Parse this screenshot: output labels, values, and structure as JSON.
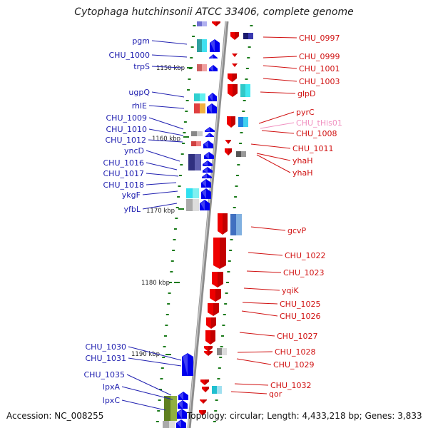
{
  "title": "Cytophaga hutchinsonii ATCC 33406, complete genome",
  "accession": "Accession: NC_008255",
  "topology_info": "Topology: circular; Length: 4,433,218 bp; Genes: 3,833",
  "colors": {
    "background": "#ffffff",
    "backbone": "#8c8c8c",
    "forward_gene": "#0000ee",
    "reverse_gene": "#ee0000",
    "forward_label": "#2020b0",
    "reverse_label": "#d01010",
    "trna_label": "#f090c0",
    "tick": "#1a7a1a"
  },
  "kbp_ticks": [
    "1150 kbp",
    "1160 kbp",
    "1170 kbp",
    "1180 kbp",
    "1190 kbp"
  ],
  "forward_strand_labels": [
    "pgm",
    "CHU_1000",
    "trpS",
    "ugpQ",
    "rhlE",
    "CHU_1009",
    "CHU_1010",
    "CHU_1012",
    "yncD",
    "CHU_1016",
    "CHU_1017",
    "CHU_1018",
    "ykgF",
    "yfbL",
    "CHU_1030",
    "CHU_1031",
    "CHU_1035",
    "lpxA",
    "lpxC"
  ],
  "reverse_strand_labels": [
    "CHU_0997",
    "CHU_0999",
    "CHU_1001",
    "CHU_1003",
    "glpD",
    "pyrC",
    "CHU_tHis01",
    "CHU_1008",
    "CHU_1011",
    "yhaH",
    "yhaH",
    "gcvP",
    "CHU_1022",
    "CHU_1023",
    "yqiK",
    "CHU_1025",
    "CHU_1026",
    "CHU_1027",
    "CHU_1028",
    "CHU_1029",
    "CHU_1032",
    "qor"
  ]
}
